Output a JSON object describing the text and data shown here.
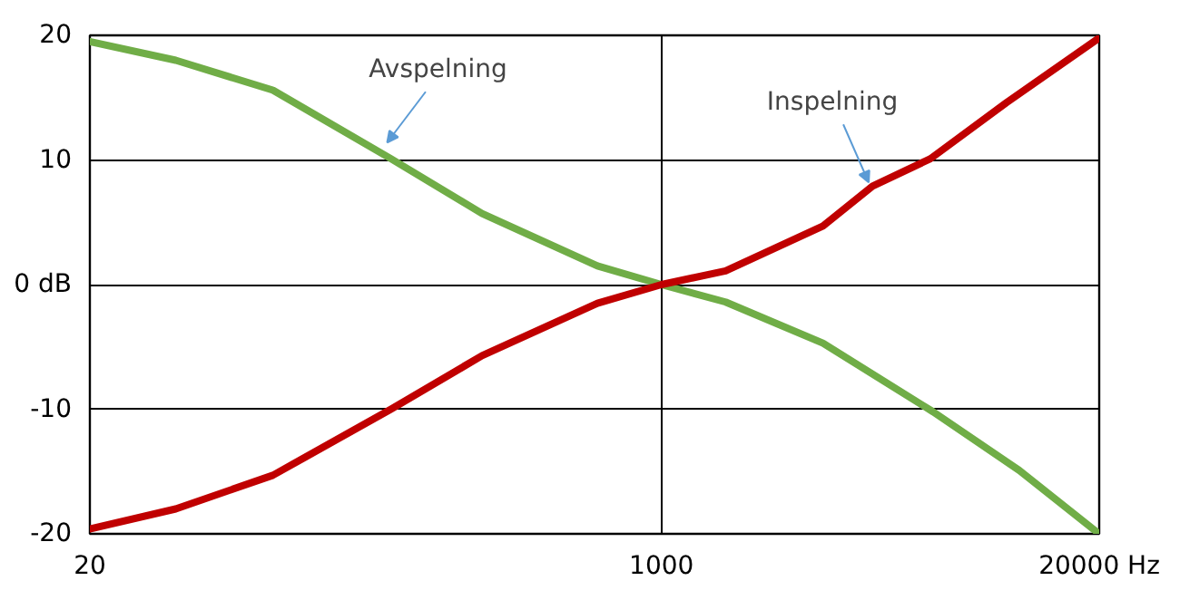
{
  "chart_data": {
    "type": "line",
    "xlim": [
      20,
      20000
    ],
    "ylim": [
      -20,
      20
    ],
    "log": "x",
    "xticks": [
      20,
      1000,
      {
        "value": 20000,
        "label": "20000 Hz"
      }
    ],
    "yticks": [
      -20,
      -10,
      {
        "value": 0,
        "label": "0 dB"
      },
      10,
      20
    ],
    "grid": true,
    "marker": "none",
    "line_style": "solid",
    "series": [
      {
        "color": "#70ad47",
        "x": [
          20,
          36,
          70,
          157,
          293,
          645,
          1000,
          1551,
          3020,
          6410,
          11560,
          20000
        ],
        "values": [
          19.5,
          18.0,
          15.6,
          10.1,
          5.7,
          1.5,
          0,
          -1.4,
          -4.7,
          -10.2,
          -14.9,
          -20
        ]
      },
      {
        "color": "#c00000",
        "x": [
          20,
          36,
          70,
          157,
          293,
          645,
          1000,
          1551,
          3020,
          4240,
          6300,
          10600,
          20000
        ],
        "values": [
          -19.6,
          -18.0,
          -15.3,
          -10.0,
          -5.7,
          -1.5,
          0,
          1.1,
          4.7,
          7.9,
          10.1,
          14.6,
          19.8
        ]
      }
    ],
    "annotations": [
      {
        "text": "Avspelning",
        "x": 153,
        "y": 11.4
      },
      {
        "text": "Inspelning",
        "x": 4130,
        "y": 8.2
      }
    ]
  }
}
